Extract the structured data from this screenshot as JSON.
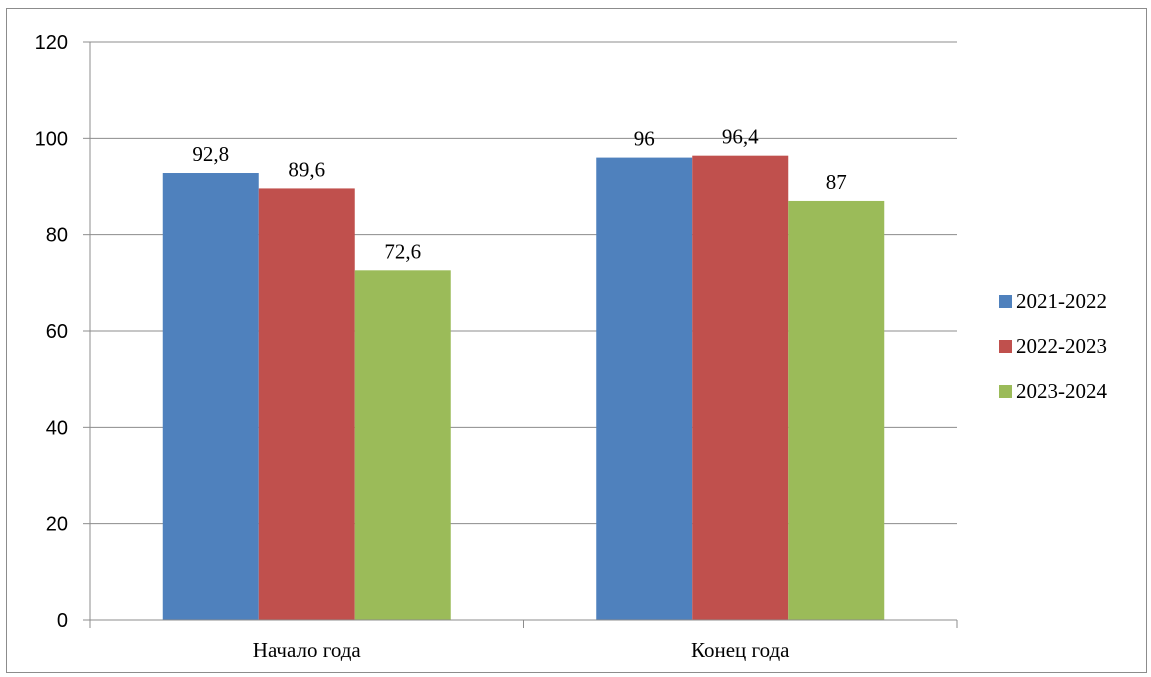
{
  "chart_data": {
    "type": "bar",
    "categories": [
      "Начало года",
      "Конец года"
    ],
    "series": [
      {
        "name": "2021-2022",
        "values": [
          92.8,
          96
        ],
        "labels": [
          "92,8",
          "96"
        ],
        "color": "#4f81bd"
      },
      {
        "name": "2022-2023",
        "values": [
          89.6,
          96.4
        ],
        "labels": [
          "89,6",
          "96,4"
        ],
        "color": "#c0504d"
      },
      {
        "name": "2023-2024",
        "values": [
          72.6,
          87
        ],
        "labels": [
          "72,6",
          "87"
        ],
        "color": "#9bbb59"
      }
    ],
    "ylim": [
      0,
      120
    ],
    "yticks": [
      0,
      20,
      40,
      60,
      80,
      100,
      120
    ],
    "ytick_labels": [
      "0",
      "20",
      "40",
      "60",
      "80",
      "100",
      "120"
    ],
    "grid": true,
    "legend_position": "right",
    "title": "",
    "xlabel": "",
    "ylabel": ""
  }
}
